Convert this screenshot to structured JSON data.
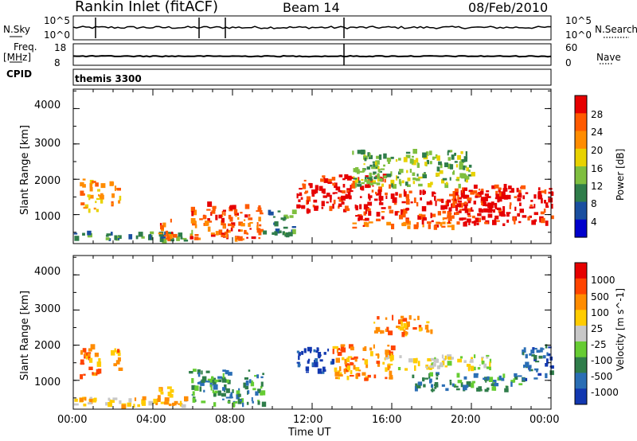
{
  "header": {
    "station": "Rankin Inlet (fitACF)",
    "beam": "Beam 14",
    "date": "08/Feb/2010"
  },
  "strip_panels": {
    "nsky_label": "N.Sky",
    "nsky_ticks": [
      "10^5",
      "10^0"
    ],
    "nsearch_label": "N.Search",
    "nsearch_ticks": [
      "10^5",
      "10^0"
    ],
    "freq_label": "Freq.",
    "freq_unit": "[MHz]",
    "freq_ticks": [
      "18",
      "8"
    ],
    "nave_label": "Nave",
    "nave_ticks": [
      "60",
      "0"
    ],
    "cpid_label": "CPID",
    "cpid_value": "themis 3300"
  },
  "chart_data": [
    {
      "type": "heatmap",
      "name": "power",
      "ylabel": "Slant Range [km]",
      "yticks": [
        "4000",
        "3000",
        "2000",
        "1000"
      ],
      "ylim": [
        180,
        4550
      ],
      "xlim": [
        0,
        24
      ],
      "colorbar_label": "Power [dB]",
      "colorbar_ticks": [
        "28",
        "24",
        "20",
        "16",
        "12",
        "8",
        "4"
      ],
      "colors": [
        "#0000cc",
        "#1a4fa0",
        "#2f7d4a",
        "#7fbf3f",
        "#e8d200",
        "#ff8c00",
        "#ff5a00",
        "#e60000"
      ],
      "echo_regions": [
        {
          "t0": 0.3,
          "t1": 1.4,
          "r0": 1100,
          "r1": 2000,
          "level": 5
        },
        {
          "t0": 1.8,
          "t1": 2.4,
          "r0": 1300,
          "r1": 1900,
          "level": 5
        },
        {
          "t0": 0.0,
          "t1": 6.0,
          "r0": 250,
          "r1": 500,
          "level": 2
        },
        {
          "t0": 4.2,
          "t1": 5.1,
          "r0": 300,
          "r1": 900,
          "level": 6
        },
        {
          "t0": 5.8,
          "t1": 9.5,
          "r0": 300,
          "r1": 1300,
          "level": 6
        },
        {
          "t0": 9.5,
          "t1": 11.0,
          "r0": 400,
          "r1": 1100,
          "level": 2
        },
        {
          "t0": 11.2,
          "t1": 16.0,
          "r0": 1100,
          "r1": 2100,
          "level": 7
        },
        {
          "t0": 14.0,
          "t1": 19.0,
          "r0": 600,
          "r1": 1100,
          "level": 6
        },
        {
          "t0": 16.0,
          "t1": 21.5,
          "r0": 1100,
          "r1": 1700,
          "level": 7
        },
        {
          "t0": 19.0,
          "t1": 24.0,
          "r0": 700,
          "r1": 1800,
          "level": 7
        },
        {
          "t0": 14.0,
          "t1": 20.0,
          "r0": 1800,
          "r1": 2800,
          "level": 3
        }
      ]
    },
    {
      "type": "heatmap",
      "name": "velocity",
      "ylabel": "Slant Range [km]",
      "yticks": [
        "4000",
        "3000",
        "2000",
        "1000"
      ],
      "ylim": [
        180,
        4550
      ],
      "xlim": [
        0,
        24
      ],
      "colorbar_label": "Velocity [m s^-1]",
      "colorbar_ticks": [
        "1000",
        "500",
        "100",
        "25",
        "-25",
        "-100",
        "-500",
        "-1000"
      ],
      "colors": [
        "#1238b0",
        "#2a6eb5",
        "#2f7d4a",
        "#66cc33",
        "#c8c8c8",
        "#ffcc00",
        "#ff8c00",
        "#ff4400",
        "#e60000"
      ],
      "echo_regions": [
        {
          "t0": 0.3,
          "t1": 1.4,
          "r0": 1100,
          "r1": 2000,
          "level": 6
        },
        {
          "t0": 1.8,
          "t1": 2.4,
          "r0": 1300,
          "r1": 1900,
          "level": 6
        },
        {
          "t0": 0.0,
          "t1": 6.0,
          "r0": 250,
          "r1": 500,
          "level": 5
        },
        {
          "t0": 4.2,
          "t1": 5.1,
          "r0": 300,
          "r1": 900,
          "level": 6
        },
        {
          "t0": 5.8,
          "t1": 9.5,
          "r0": 300,
          "r1": 1300,
          "level": 2
        },
        {
          "t0": 11.2,
          "t1": 13.0,
          "r0": 1200,
          "r1": 1900,
          "level": 0
        },
        {
          "t0": 13.0,
          "t1": 16.0,
          "r0": 1000,
          "r1": 2000,
          "level": 6
        },
        {
          "t0": 15.5,
          "t1": 21.0,
          "r0": 1300,
          "r1": 1700,
          "level": 4
        },
        {
          "t0": 17.0,
          "t1": 22.5,
          "r0": 700,
          "r1": 1200,
          "level": 2
        },
        {
          "t0": 22.5,
          "t1": 24.0,
          "r0": 1000,
          "r1": 2000,
          "level": 1
        },
        {
          "t0": 15.0,
          "t1": 18.0,
          "r0": 2300,
          "r1": 2800,
          "level": 6
        }
      ]
    }
  ],
  "x_axis": {
    "ticks": [
      "00:00",
      "04:00",
      "08:00",
      "12:00",
      "16:00",
      "20:00",
      "00:00"
    ],
    "label": "Time UT"
  }
}
